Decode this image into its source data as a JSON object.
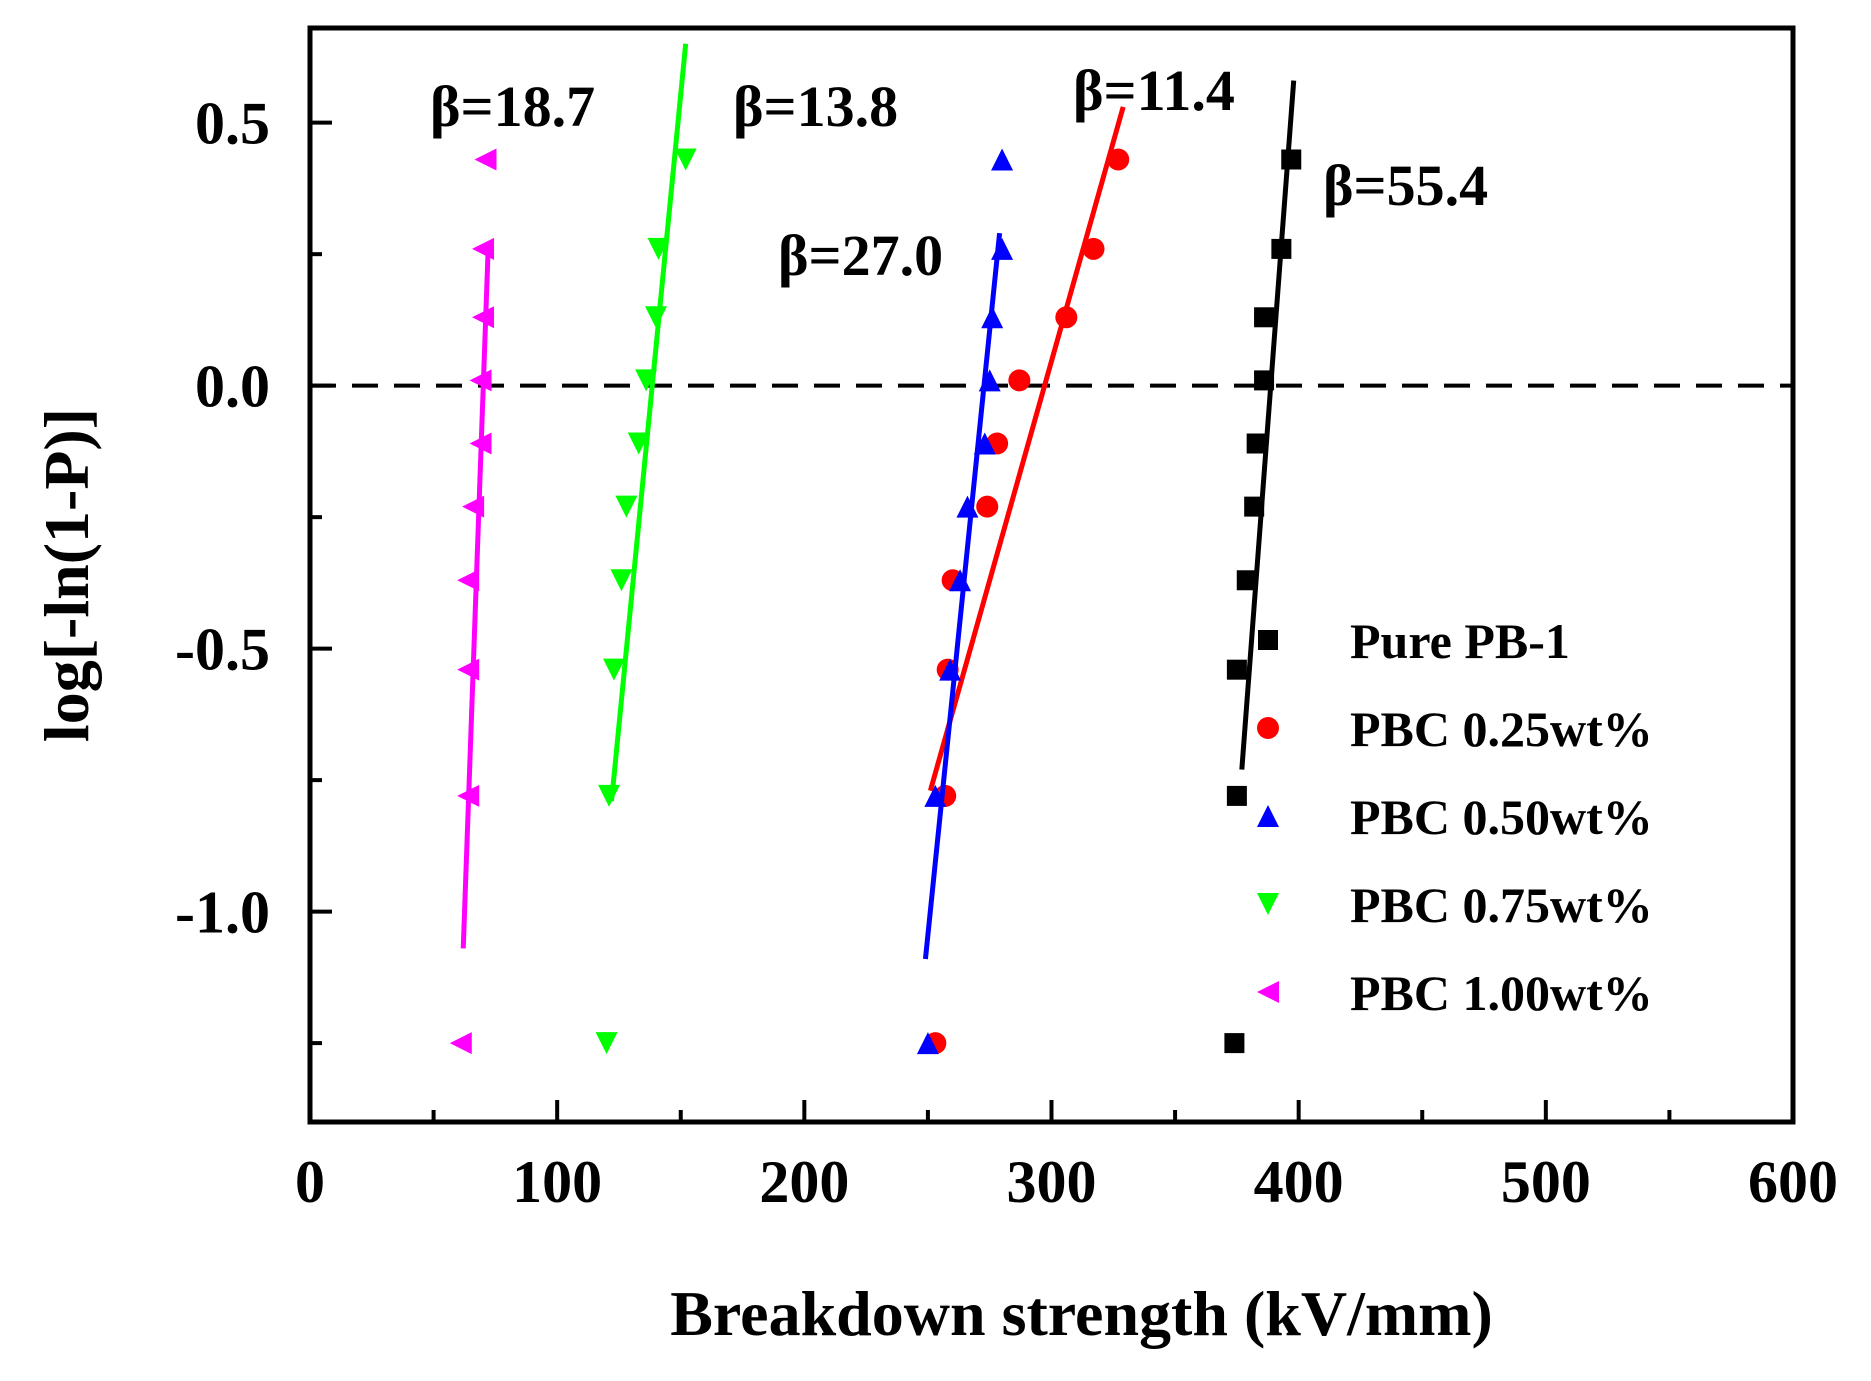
{
  "chart_data": {
    "type": "scatter",
    "xlabel": "Breakdown strength (kV/mm)",
    "ylabel": "log[-ln(1-P)]",
    "xlim": [
      0,
      600
    ],
    "ylim": [
      -1.4,
      0.68
    ],
    "xticks": [
      0,
      100,
      200,
      300,
      400,
      500,
      600
    ],
    "yticks": [
      0.5,
      0.0,
      -0.5,
      -1.0
    ],
    "ytick_labels": [
      "0.5",
      "0.0",
      "-0.5",
      "-1.0"
    ],
    "grid": false,
    "legend_position": "bottom-right",
    "reference_line": {
      "y": 0.0,
      "style": "dashed"
    },
    "y_levels": [
      -1.25,
      -0.78,
      -0.54,
      -0.37,
      -0.23,
      -0.11,
      0.01,
      0.13,
      0.26,
      0.43
    ],
    "series": [
      {
        "name": "Pure PB-1",
        "color": "#000000",
        "marker": "square",
        "beta_label": "β=55.4",
        "points": [
          [
            374,
            -1.25
          ],
          [
            375,
            -0.78
          ],
          [
            375,
            -0.54
          ],
          [
            379,
            -0.37
          ],
          [
            382,
            -0.23
          ],
          [
            383,
            -0.11
          ],
          [
            386,
            0.01
          ],
          [
            386,
            0.13
          ],
          [
            393,
            0.26
          ],
          [
            397,
            0.43
          ]
        ],
        "fit": [
          [
            377,
            -0.73
          ],
          [
            398,
            0.58
          ]
        ]
      },
      {
        "name": "PBC 0.25wt%",
        "color": "#ff0000",
        "marker": "circle",
        "beta_label": "β=11.4",
        "points": [
          [
            253,
            -1.25
          ],
          [
            257,
            -0.78
          ],
          [
            258,
            -0.54
          ],
          [
            260,
            -0.37
          ],
          [
            274,
            -0.23
          ],
          [
            278,
            -0.11
          ],
          [
            287,
            0.01
          ],
          [
            306,
            0.13
          ],
          [
            317,
            0.26
          ],
          [
            327,
            0.43
          ]
        ],
        "fit": [
          [
            251,
            -0.77
          ],
          [
            329,
            0.53
          ]
        ]
      },
      {
        "name": "PBC 0.50wt%",
        "color": "#0000ff",
        "marker": "triangle-up",
        "beta_label": "β=27.0",
        "points": [
          [
            250,
            -1.25
          ],
          [
            253,
            -0.78
          ],
          [
            259,
            -0.54
          ],
          [
            263,
            -0.37
          ],
          [
            266,
            -0.23
          ],
          [
            273,
            -0.11
          ],
          [
            275,
            0.01
          ],
          [
            276,
            0.13
          ],
          [
            280,
            0.26
          ],
          [
            280,
            0.43
          ]
        ],
        "fit": [
          [
            249,
            -1.09
          ],
          [
            279,
            0.29
          ]
        ]
      },
      {
        "name": "PBC 0.75wt%",
        "color": "#00ff00",
        "marker": "triangle-down",
        "beta_label": "β=13.8",
        "points": [
          [
            120,
            -1.25
          ],
          [
            121,
            -0.78
          ],
          [
            123,
            -0.54
          ],
          [
            126,
            -0.37
          ],
          [
            128,
            -0.23
          ],
          [
            133,
            -0.11
          ],
          [
            136,
            0.01
          ],
          [
            140,
            0.13
          ],
          [
            141,
            0.26
          ],
          [
            152,
            0.43
          ]
        ],
        "fit": [
          [
            122,
            -0.79
          ],
          [
            152,
            0.65
          ]
        ]
      },
      {
        "name": "PBC 1.00wt%",
        "color": "#ff00ff",
        "marker": "triangle-left",
        "beta_label": "β=18.7",
        "points": [
          [
            61,
            -1.25
          ],
          [
            64,
            -0.78
          ],
          [
            64,
            -0.54
          ],
          [
            64,
            -0.37
          ],
          [
            66,
            -0.23
          ],
          [
            69,
            -0.11
          ],
          [
            69,
            0.01
          ],
          [
            70,
            0.13
          ],
          [
            70,
            0.26
          ],
          [
            71,
            0.43
          ]
        ],
        "fit": [
          [
            62,
            -1.07
          ],
          [
            72,
            0.25
          ]
        ]
      }
    ]
  }
}
